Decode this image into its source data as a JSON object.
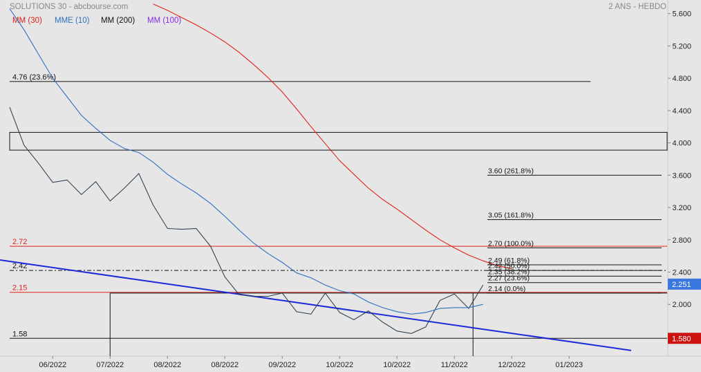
{
  "header": {
    "title": "SOLUTIONS 30 - abcbourse.com",
    "period": "2 ANS - HEBDO"
  },
  "legend": [
    {
      "label": "MM (30)",
      "color": "#e0201a"
    },
    {
      "label": "MME (10)",
      "color": "#2e6fbf"
    },
    {
      "label": "MM (200)",
      "color": "#111111"
    },
    {
      "label": "MM (100)",
      "color": "#8a2be2"
    }
  ],
  "chart_data": {
    "type": "line",
    "title": "SOLUTIONS 30",
    "ylim": [
      1.36,
      5.76
    ],
    "y_ticks": [
      "5.600",
      "5.200",
      "4.800",
      "4.400",
      "4.000",
      "3.600",
      "3.200",
      "2.800",
      "2.400",
      "2.000"
    ],
    "y_tick_values": [
      5.6,
      5.2,
      4.8,
      4.4,
      4.0,
      3.6,
      3.2,
      2.8,
      2.4,
      2.0
    ],
    "x_labels": [
      "06/2022",
      "07/2022",
      "08/2022",
      "08/2022",
      "09/2022",
      "10/2022",
      "10/2022",
      "11/2022",
      "12/2022",
      "01/2023"
    ],
    "x_label_index": [
      3,
      7,
      11,
      15,
      19,
      23,
      27,
      31,
      35,
      39
    ],
    "x_count": 44,
    "series": [
      {
        "key": "price",
        "color": "#334455",
        "width": 1.1,
        "values": [
          4.44,
          3.97,
          3.75,
          3.51,
          3.54,
          3.36,
          3.52,
          3.28,
          3.44,
          3.62,
          3.23,
          2.94,
          2.93,
          2.94,
          2.72,
          2.34,
          2.12,
          2.1,
          2.1,
          2.14,
          1.91,
          1.88,
          2.14,
          1.9,
          1.81,
          1.92,
          1.78,
          1.67,
          1.64,
          1.72,
          2.05,
          2.13,
          1.95,
          2.24
        ]
      },
      {
        "key": "mme10",
        "color": "#2e6fbf",
        "width": 1.1,
        "values": [
          5.66,
          5.4,
          5.1,
          4.8,
          4.57,
          4.34,
          4.18,
          4.03,
          3.93,
          3.88,
          3.76,
          3.61,
          3.49,
          3.38,
          3.25,
          3.09,
          2.92,
          2.76,
          2.63,
          2.52,
          2.39,
          2.33,
          2.24,
          2.17,
          2.13,
          2.03,
          1.96,
          1.91,
          1.88,
          1.9,
          1.95,
          1.96,
          1.96,
          2.0
        ]
      },
      {
        "key": "mm30",
        "color": "#e0201a",
        "width": 1.1,
        "x_start": 10,
        "values": [
          5.72,
          5.64,
          5.55,
          5.46,
          5.36,
          5.25,
          5.12,
          4.97,
          4.81,
          4.63,
          4.42,
          4.2,
          3.99,
          3.78,
          3.61,
          3.44,
          3.3,
          3.18,
          3.05,
          2.92,
          2.8,
          2.7,
          2.61,
          2.54,
          2.48,
          2.44
        ]
      }
    ],
    "trendline": {
      "color": "#1a2ad8",
      "from": [
        0,
        2.55
      ],
      "to": [
        44,
        1.43
      ]
    },
    "levels": [
      {
        "value": 2.72,
        "label": "2.72",
        "color": "#e0201a"
      },
      {
        "value": 2.15,
        "label": "2.15",
        "color": "#e0201a"
      },
      {
        "value": 2.42,
        "label": "2.42",
        "color": "#111111",
        "dash": true
      },
      {
        "value": 1.58,
        "label": "1.58",
        "color": "#111111"
      },
      {
        "value": 4.76,
        "label": "4.76  (23.6%)",
        "color": "#111111",
        "x_to": 40.5
      }
    ],
    "zone": {
      "y_top": 4.13,
      "y_bottom": 3.91
    },
    "fibonacci": [
      {
        "value": 3.6,
        "label": "3.60  (261.8%)"
      },
      {
        "value": 3.05,
        "label": "3.05  (161.8%)"
      },
      {
        "value": 2.7,
        "label": "2.70  (100.0%)"
      },
      {
        "value": 2.49,
        "label": "2.49  (61.8%)"
      },
      {
        "value": 2.42,
        "label": "2.42  (50.0%)"
      },
      {
        "value": 2.35,
        "label": "2.35  (38.2%)"
      },
      {
        "value": 2.27,
        "label": "2.27  (23.6%)"
      },
      {
        "value": 2.14,
        "label": "2.14  (0.0%)"
      }
    ],
    "markers": [
      {
        "x": 7.0,
        "from": 2.14,
        "to": 1.36
      },
      {
        "x": 32.3,
        "from": 2.14,
        "to": 1.36
      }
    ],
    "badges": [
      {
        "value": 2.251,
        "label": "2.251",
        "color": "#3a78e0"
      },
      {
        "value": 1.58,
        "label": "1.580",
        "color": "#cc1111"
      }
    ]
  }
}
